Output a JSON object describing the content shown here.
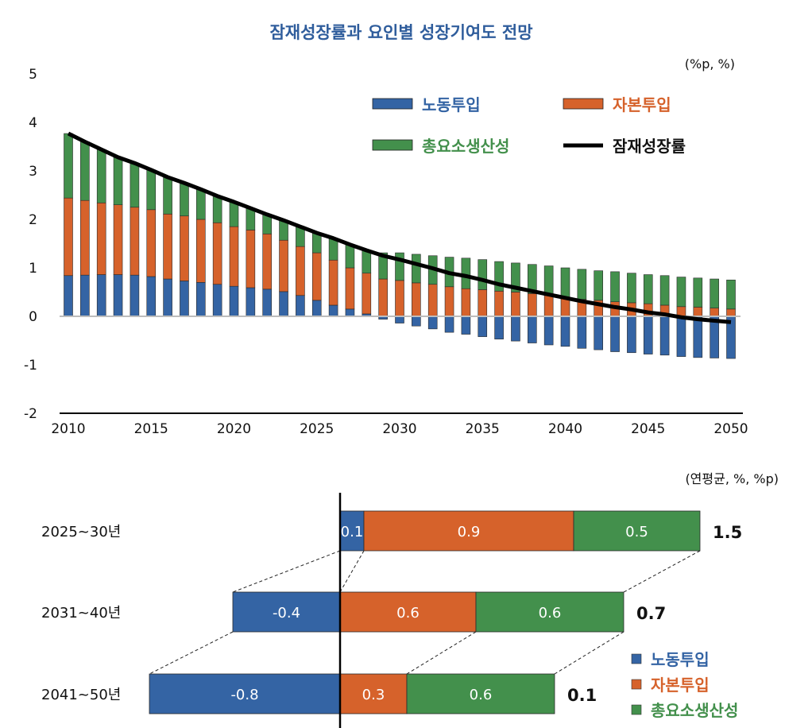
{
  "chart_data": [
    {
      "type": "bar",
      "stacked": true,
      "title": "잠재성장률과 요인별 성장기여도 전망",
      "unit_note": "(%p, %)",
      "xlabel": "",
      "ylabel": "",
      "ylim": [
        -2,
        5
      ],
      "yticks": [
        5,
        4,
        3,
        2,
        1,
        0,
        -1,
        -2
      ],
      "xticks": [
        2010,
        2015,
        2020,
        2025,
        2030,
        2035,
        2040,
        2045,
        2050
      ],
      "grid": false,
      "legend_position": "top-right",
      "x": [
        2010,
        2011,
        2012,
        2013,
        2014,
        2015,
        2016,
        2017,
        2018,
        2019,
        2020,
        2021,
        2022,
        2023,
        2024,
        2025,
        2026,
        2027,
        2028,
        2029,
        2030,
        2031,
        2032,
        2033,
        2034,
        2035,
        2036,
        2037,
        2038,
        2039,
        2040,
        2041,
        2042,
        2043,
        2044,
        2045,
        2046,
        2047,
        2048,
        2049,
        2050
      ],
      "series": [
        {
          "name": "노동투입",
          "kind": "bar",
          "color": "#3464a4",
          "values": [
            0.84,
            0.85,
            0.86,
            0.86,
            0.85,
            0.82,
            0.77,
            0.73,
            0.7,
            0.66,
            0.62,
            0.59,
            0.56,
            0.51,
            0.43,
            0.33,
            0.23,
            0.15,
            0.05,
            -0.06,
            -0.14,
            -0.2,
            -0.26,
            -0.33,
            -0.37,
            -0.42,
            -0.47,
            -0.51,
            -0.55,
            -0.59,
            -0.62,
            -0.66,
            -0.69,
            -0.73,
            -0.75,
            -0.78,
            -0.8,
            -0.83,
            -0.85,
            -0.86,
            -0.87
          ]
        },
        {
          "name": "자본투입",
          "kind": "bar",
          "color": "#d6622b",
          "values": [
            1.6,
            1.54,
            1.48,
            1.44,
            1.4,
            1.38,
            1.34,
            1.34,
            1.3,
            1.27,
            1.23,
            1.19,
            1.14,
            1.06,
            1.01,
            0.98,
            0.93,
            0.85,
            0.84,
            0.77,
            0.74,
            0.69,
            0.66,
            0.61,
            0.57,
            0.55,
            0.52,
            0.5,
            0.47,
            0.43,
            0.36,
            0.35,
            0.33,
            0.3,
            0.28,
            0.26,
            0.23,
            0.2,
            0.19,
            0.17,
            0.15
          ]
        },
        {
          "name": "총요소생산성",
          "kind": "bar",
          "color": "#43904c",
          "values": [
            1.33,
            1.21,
            1.1,
            0.98,
            0.91,
            0.82,
            0.76,
            0.68,
            0.62,
            0.55,
            0.51,
            0.45,
            0.4,
            0.41,
            0.41,
            0.41,
            0.45,
            0.48,
            0.47,
            0.54,
            0.57,
            0.59,
            0.59,
            0.61,
            0.63,
            0.62,
            0.61,
            0.6,
            0.6,
            0.61,
            0.64,
            0.62,
            0.61,
            0.62,
            0.61,
            0.6,
            0.61,
            0.61,
            0.6,
            0.6,
            0.6
          ]
        },
        {
          "name": "잠재성장률",
          "kind": "line",
          "color": "#000000",
          "values": [
            3.77,
            3.6,
            3.44,
            3.28,
            3.16,
            3.02,
            2.87,
            2.75,
            2.62,
            2.48,
            2.36,
            2.23,
            2.1,
            1.98,
            1.85,
            1.72,
            1.61,
            1.48,
            1.36,
            1.25,
            1.17,
            1.08,
            0.99,
            0.89,
            0.83,
            0.75,
            0.66,
            0.59,
            0.52,
            0.45,
            0.38,
            0.31,
            0.25,
            0.19,
            0.14,
            0.08,
            0.04,
            -0.02,
            -0.06,
            -0.09,
            -0.12
          ]
        }
      ]
    },
    {
      "type": "bar",
      "orientation": "horizontal",
      "stacked": true,
      "title": "",
      "unit_note": "(연평균, %, %p)",
      "legend_position": "bottom-right",
      "categories": [
        "2025~30년",
        "2031~40년",
        "2041~50년"
      ],
      "series": [
        {
          "name": "노동투입",
          "color": "#3464a4",
          "values": [
            0.1,
            -0.45,
            -0.8
          ],
          "labels": [
            "0.1",
            "-0.4",
            "-0.8"
          ]
        },
        {
          "name": "자본투입",
          "color": "#d6622b",
          "values": [
            0.88,
            0.57,
            0.28
          ],
          "labels": [
            "0.9",
            "0.6",
            "0.3"
          ]
        },
        {
          "name": "총요소생산성",
          "color": "#43904c",
          "values": [
            0.53,
            0.62,
            0.62
          ],
          "labels": [
            "0.5",
            "0.6",
            "0.6"
          ]
        }
      ],
      "totals": [
        "1.5",
        "0.7",
        "0.1"
      ]
    }
  ]
}
